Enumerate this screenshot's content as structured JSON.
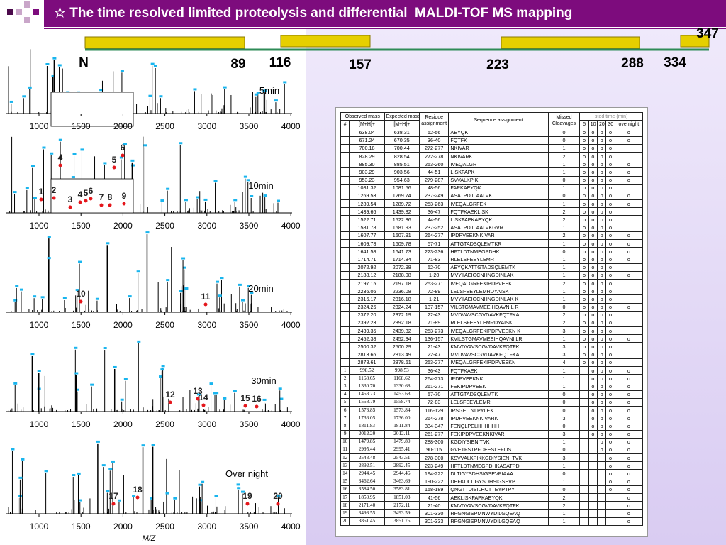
{
  "header": {
    "title": "☆ The time resolved limited proteolysis and differential  MALDI-TOF MS mapping"
  },
  "domain_map": {
    "labels": [
      "N",
      "89",
      "116",
      "157",
      "223",
      "288",
      "334",
      "347"
    ]
  },
  "spectra": {
    "xticks": [
      "1000",
      "1500",
      "2000",
      "2500",
      "3000",
      "3500",
      "4000"
    ],
    "x_label": "M/Z",
    "panels": [
      {
        "label": "5min",
        "peaks": []
      },
      {
        "label": "10min",
        "peaks": [
          "4",
          "6",
          "5",
          "1",
          "2",
          "3",
          "4",
          "5",
          "6",
          "7",
          "8",
          "9"
        ]
      },
      {
        "label": "20min",
        "peaks": [
          "10",
          "11"
        ]
      },
      {
        "label": "30min",
        "peaks": [
          "12",
          "13",
          "14",
          "15",
          "16"
        ]
      },
      {
        "label": "Over night",
        "peaks": [
          "17",
          "18",
          "19",
          "20"
        ]
      }
    ]
  },
  "table": {
    "headers": [
      "Observed mass",
      "Expected mass",
      "Residue assignment",
      "Sequence assignment",
      "Missed Cleavages",
      "sted time (min)"
    ],
    "subheaders": [
      "#",
      "[M+H]+",
      "[M+H]+",
      "5",
      "10",
      "20",
      "30",
      "overnight"
    ],
    "rows": [
      [
        null,
        "638.04",
        "638.31",
        "52-56",
        "AEYQK",
        "0",
        "o",
        "o",
        "o",
        "o",
        "o"
      ],
      [
        null,
        "671.24",
        "670.35",
        "36-40",
        "FQTFK",
        "0",
        "o",
        "o",
        "o",
        "o",
        "o"
      ],
      [
        null,
        "700.18",
        "700.44",
        "272-277",
        "NKIVAR",
        "1",
        "o",
        "o",
        "o",
        "o",
        null
      ],
      [
        null,
        "828.29",
        "828.54",
        "272-278",
        "NKIVARK",
        "2",
        "o",
        "o",
        "o",
        "o",
        null
      ],
      [
        null,
        "885.30",
        "885.51",
        "253-260",
        "IVEQALGR",
        "1",
        "o",
        "o",
        "o",
        "o",
        "o"
      ],
      [
        null,
        "903.29",
        "903.56",
        "44-51",
        "LISKFAPK",
        "1",
        "o",
        "o",
        "o",
        "o",
        "o"
      ],
      [
        null,
        "953.23",
        "954.63",
        "279-287",
        "SVVALKPIK",
        "0",
        "o",
        "o",
        "o",
        "o",
        "o"
      ],
      [
        null,
        "1081.32",
        "1081.56",
        "48-56",
        "FAPKAEYQK",
        "1",
        "o",
        "o",
        "o",
        "o",
        null
      ],
      [
        null,
        "1269.53",
        "1269.74",
        "237-249",
        "ASATPDIILAALVK",
        "0",
        "o",
        "o",
        "o",
        "o",
        "o"
      ],
      [
        null,
        "1289.54",
        "1289.72",
        "253-263",
        "IVEQALGRFEK",
        "1",
        "o",
        "o",
        "o",
        "o",
        "o"
      ],
      [
        null,
        "1439.66",
        "1439.82",
        "36-47",
        "FQTFKAEKLISK",
        "2",
        "o",
        "o",
        "o",
        "o",
        null
      ],
      [
        null,
        "1522.71",
        "1522.86",
        "44-56",
        "LISKFAPKAEYQK",
        "2",
        "o",
        "o",
        "o",
        "o",
        null
      ],
      [
        null,
        "1581.78",
        "1581.93",
        "237-252",
        "ASATPDIILAALVKGVR",
        "1",
        "o",
        "o",
        "o",
        "o",
        null
      ],
      [
        null,
        "1607.77",
        "1607.91",
        "264-277",
        "IPDPVEEKNKIVAR",
        "2",
        "o",
        "o",
        "o",
        "o",
        "o"
      ],
      [
        null,
        "1609.78",
        "1609.78",
        "57-71",
        "ATTGTADSQLEMTKR",
        "1",
        "o",
        "o",
        "o",
        "o",
        "o"
      ],
      [
        null,
        "1641.58",
        "1641.73",
        "223-236",
        "HFTLDTNMEGPDHK",
        "0",
        "o",
        "o",
        "o",
        "o",
        "o"
      ],
      [
        null,
        "1714.71",
        "1714.84",
        "71-83",
        "RLELSFEEYLEMR",
        "1",
        "o",
        "o",
        "o",
        "o",
        "o"
      ],
      [
        null,
        "2072.92",
        "2072.98",
        "52-70",
        "AEYQKATTGTADSQLEMTK",
        "1",
        "o",
        "o",
        "o",
        "o",
        null
      ],
      [
        null,
        "2188.12",
        "2188.08",
        "1-20",
        "MVYIIAEIGCNHNGDINLAK",
        "1",
        "o",
        "o",
        "o",
        "o",
        "o"
      ],
      [
        null,
        "2197.15",
        "2197.18",
        "253-271",
        "IVEQALGRFEKIPDPVEEK",
        "2",
        "o",
        "o",
        "o",
        "o",
        null
      ],
      [
        null,
        "2236.06",
        "2236.08",
        "72-89",
        "LELSFEEYLEMRDYAISK",
        "1",
        "o",
        "o",
        "o",
        "o",
        null
      ],
      [
        null,
        "2316.17",
        "2316.18",
        "1-21",
        "MVYIIAEIGCNHNGDINLAK K",
        "1",
        "o",
        "o",
        "o",
        "o",
        null
      ],
      [
        null,
        "2324.26",
        "2324.24",
        "137-157",
        "VILSTGMAVMEEIHQAVNIL R",
        "0",
        "o",
        "o",
        "o",
        "o",
        "o"
      ],
      [
        null,
        "2372.20",
        "2372.19",
        "22-43",
        "MVDVAVSCGVDAVKFQTFKA",
        "2",
        "o",
        "o",
        "o",
        "o",
        null
      ],
      [
        null,
        "2392.23",
        "2392.18",
        "71-89",
        "RLELSFEEYLEMRDYAISK",
        "2",
        "o",
        "o",
        "o",
        "o",
        null
      ],
      [
        null,
        "2439.35",
        "2439.32",
        "253-273",
        "IVEQALGRFEKIPDPVEEKN K",
        "3",
        "o",
        "o",
        "o",
        "o",
        null
      ],
      [
        null,
        "2452.38",
        "2452.34",
        "136-157",
        "KVILSTGMAVMEEIHQAVNI LR",
        "1",
        "o",
        "o",
        "o",
        "o",
        "o"
      ],
      [
        null,
        "2500.32",
        "2500.29",
        "21-43",
        "KMVDVAVSCGVDAVKFQTFK",
        "3",
        "o",
        "o",
        "o",
        "o",
        null
      ],
      [
        null,
        "2813.66",
        "2813.49",
        "22-47",
        "MVDVAVSCGVDAVKFQTFKA",
        "3",
        "o",
        "o",
        "o",
        "o",
        null
      ],
      [
        null,
        "2878.61",
        "2878.61",
        "253-277",
        "IVEQALGRFEKIPDPVEEKN",
        "4",
        "o",
        "o",
        "o",
        "o",
        null
      ],
      [
        "1",
        "998.52",
        "998.53",
        "36-43",
        "FQTFKAEK",
        "1",
        null,
        "o",
        "o",
        "o",
        "o"
      ],
      [
        "2",
        "1168.65",
        "1168.62",
        "264-273",
        "IPDPVEEKNK",
        "1",
        null,
        "o",
        "o",
        "o",
        "o"
      ],
      [
        "3",
        "1330.70",
        "1330.68",
        "261-271",
        "FEKIPDPVEEK",
        "1",
        null,
        "o",
        "o",
        "o",
        "o"
      ],
      [
        "4",
        "1453.73",
        "1453.68",
        "57-70",
        "ATTGTADSQLEMTK",
        "0",
        null,
        "o",
        "o",
        "o",
        "o"
      ],
      [
        "5",
        "1558.79",
        "1558.74",
        "72-83",
        "LELSFEEYLEMR",
        "0",
        null,
        "o",
        "o",
        "o",
        "o"
      ],
      [
        "6",
        "1573.85",
        "1573.84",
        "116-129",
        "IPSGEITNLPYLEK",
        "0",
        null,
        "o",
        "o",
        "o",
        "o"
      ],
      [
        "7",
        "1736.05",
        "1736.00",
        "264-278",
        "IPDPVEEKNKIVARK",
        "3",
        null,
        "o",
        "o",
        "o",
        "o"
      ],
      [
        "8",
        "1811.83",
        "1811.84",
        "334-347",
        "FENQLPELHHHHHH",
        "0",
        null,
        "o",
        "o",
        "o",
        "o"
      ],
      [
        "9",
        "2012.20",
        "2012.11",
        "261-277",
        "FEKIPDPVEEKNKIVAR",
        "3",
        null,
        "o",
        "o",
        "o",
        "o"
      ],
      [
        "10",
        "1479.85",
        "1479.80",
        "288-300",
        "KGDIYSIENITVK",
        "1",
        null,
        null,
        "o",
        "o",
        "o"
      ],
      [
        "11",
        "2995.44",
        "2995.41",
        "90-115",
        "GVETFSTPFDEESLEFLIST",
        "0",
        null,
        null,
        "o",
        "o",
        "o"
      ],
      [
        "12",
        "2543.48",
        "2543.51",
        "278-300",
        "KSVVALKPIKKGDIYSIENI TVK",
        "3",
        null,
        null,
        null,
        "o",
        "o"
      ],
      [
        "13",
        "2892.51",
        "2892.45",
        "223-249",
        "HFTLDTNMEGPDHKASATPD",
        "1",
        null,
        null,
        null,
        "o",
        "o"
      ],
      [
        "14",
        "2944.45",
        "2944.46",
        "194-222",
        "DLTIGYSDHSIGSEVPIAAA",
        "0",
        null,
        null,
        null,
        "o",
        "o"
      ],
      [
        "15",
        "3462.64",
        "3463.69",
        "190-222",
        "DEFKDLTIGYSDHSIGSEVP",
        "1",
        null,
        null,
        null,
        "o",
        "o"
      ],
      [
        "16",
        "3584.50",
        "3583.81",
        "158-189",
        "QNGTTDISILHCTTEYPTPY",
        "0",
        null,
        null,
        null,
        "o",
        "o"
      ],
      [
        "17",
        "1850.95",
        "1851.03",
        "41-56",
        "AEKLISKFAPKAEYQK",
        "2",
        null,
        null,
        null,
        null,
        "o"
      ],
      [
        "18",
        "2171.40",
        "2172.11",
        "21-40",
        "KMVDVAVSCGVDAVKFQTFK",
        "2",
        null,
        null,
        null,
        null,
        "o"
      ],
      [
        "19",
        "3493.55",
        "3493.59",
        "301-330",
        "RPGNGISPMNWYDILGQEAQ",
        "1",
        null,
        null,
        null,
        null,
        "o"
      ],
      [
        "20",
        "3851.45",
        "3851.75",
        "301-333",
        "RPGNGISPMNWYDILGQEAQ",
        "1",
        null,
        null,
        null,
        null,
        "o"
      ]
    ]
  }
}
